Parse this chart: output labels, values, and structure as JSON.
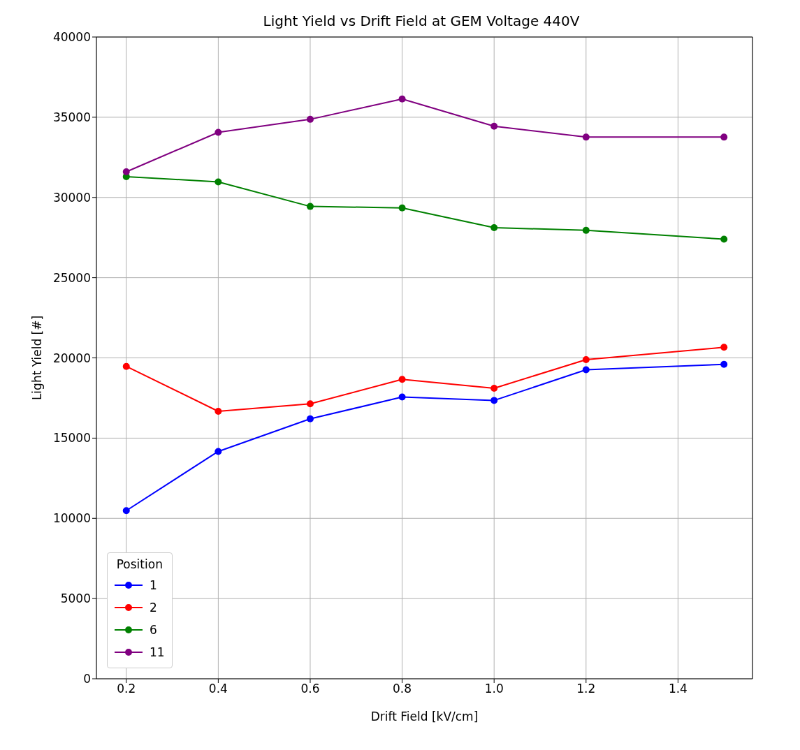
{
  "chart_data": {
    "type": "line",
    "title": "Light Yield vs Drift Field at GEM Voltage 440V",
    "xlabel": "Drift Field [kV/cm]",
    "ylabel": "Light Yield [#]",
    "legend_title": "Position",
    "x": [
      0.2,
      0.4,
      0.6,
      0.8,
      1.0,
      1.2,
      1.5
    ],
    "series": [
      {
        "name": "1",
        "color": "#0000ff",
        "values": [
          10480,
          14170,
          16200,
          17560,
          17350,
          19260,
          19600
        ]
      },
      {
        "name": "2",
        "color": "#ff0000",
        "values": [
          19470,
          16670,
          17140,
          18660,
          18110,
          19890,
          20660
        ]
      },
      {
        "name": "6",
        "color": "#008000",
        "values": [
          31300,
          30970,
          29440,
          29350,
          28120,
          27950,
          27400
        ]
      },
      {
        "name": "11",
        "color": "#800080",
        "values": [
          31600,
          34060,
          34870,
          36140,
          34440,
          33760,
          33760
        ]
      }
    ],
    "xlim": [
      0.135,
      1.562
    ],
    "xticks": [
      0.2,
      0.4,
      0.6,
      0.8,
      {
        "value": 1.0,
        "label": "1.0"
      },
      1.2,
      1.4
    ],
    "ylim": [
      0,
      40000
    ],
    "yticks": [
      0,
      5000,
      10000,
      15000,
      20000,
      25000,
      30000,
      35000,
      40000
    ],
    "grid": true,
    "legend": "bottom left",
    "marker": "circle",
    "line_style": "solid"
  }
}
